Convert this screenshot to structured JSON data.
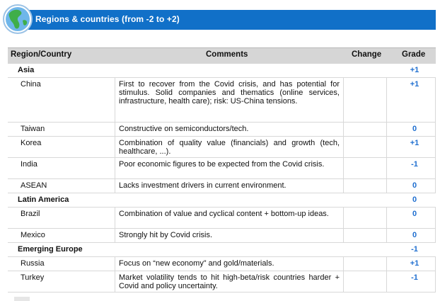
{
  "banner": {
    "title": "Regions  &  countries  (from  -2 to +2)"
  },
  "table": {
    "headers": {
      "region": "Region/Country",
      "comments": "Comments",
      "change": "Change",
      "grade": "Grade"
    },
    "rows": [
      {
        "type": "region",
        "name": "Asia",
        "comment": "",
        "grade": "+1"
      },
      {
        "type": "country",
        "name": "China",
        "comment": "First to recover from the Covid crisis, and has potential for stimulus. Solid companies and thematics (online services, infrastructure, health care); risk: US-China tensions.",
        "grade": "+1"
      },
      {
        "type": "country",
        "name": "Taiwan",
        "comment": "Constructive on semiconductors/tech.",
        "grade": "0"
      },
      {
        "type": "country",
        "name": "Korea",
        "comment": "Combination of quality value (financials) and growth (tech, healthcare, ...).",
        "grade": "+1"
      },
      {
        "type": "country",
        "name": "India",
        "comment": "Poor economic figures to be expected from the Covid crisis.",
        "grade": "-1"
      },
      {
        "type": "country",
        "name": "ASEAN",
        "comment": "Lacks investment drivers in current environment.",
        "grade": "0"
      },
      {
        "type": "region",
        "name": "Latin America",
        "comment": "",
        "grade": "0"
      },
      {
        "type": "country",
        "name": "Brazil",
        "comment": "Combination of value and cyclical content + bottom-up ideas.",
        "grade": "0"
      },
      {
        "type": "country",
        "name": "Mexico",
        "comment": "Strongly hit by Covid crisis.",
        "grade": "0"
      },
      {
        "type": "region",
        "name": "Emerging Europe",
        "comment": "",
        "grade": "-1"
      },
      {
        "type": "country",
        "name": "Russia",
        "comment": "Focus on “new economy” and gold/materials.",
        "grade": "+1"
      },
      {
        "type": "country",
        "name": "Turkey",
        "comment": "Market volatility tends to hit high-beta/risk countries harder + Covid and policy uncertainty.",
        "grade": "-1"
      }
    ]
  }
}
